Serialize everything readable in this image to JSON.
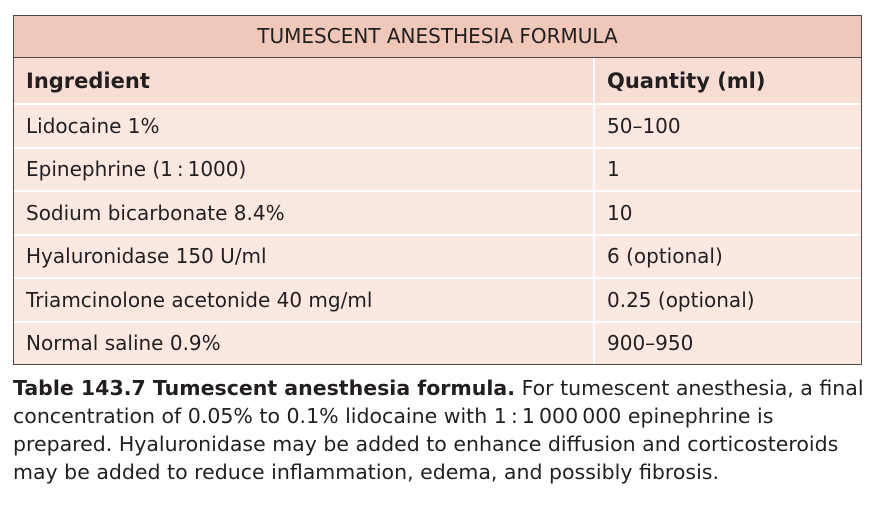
{
  "table": {
    "title": "TUMESCENT ANESTHESIA FORMULA",
    "header": [
      "Ingredient",
      "Quantity (ml)"
    ],
    "rows": [
      [
        "Lidocaine 1%",
        "50–100"
      ],
      [
        "Epinephrine (1 : 1000)",
        "1"
      ],
      [
        "Sodium bicarbonate 8.4%",
        "10"
      ],
      [
        "Hyaluronidase 150 U/ml",
        "6 (optional)"
      ],
      [
        "Triamcinolone acetonide 40 mg/ml",
        "0.25 (optional)"
      ],
      [
        "Normal saline 0.9%",
        "900–950"
      ]
    ]
  },
  "caption": {
    "label": "Table 143.7 Tumescent anesthesia formula.",
    "text": "For tumescent anesthesia, a final concentration of 0.05% to 0.1% lidocaine with 1 : 1 000 000 epinephrine is prepared. Hyaluronidase may be added to enhance diffusion and corticosteroids may be added to reduce inflammation, edema, and possibly fibrosis."
  }
}
